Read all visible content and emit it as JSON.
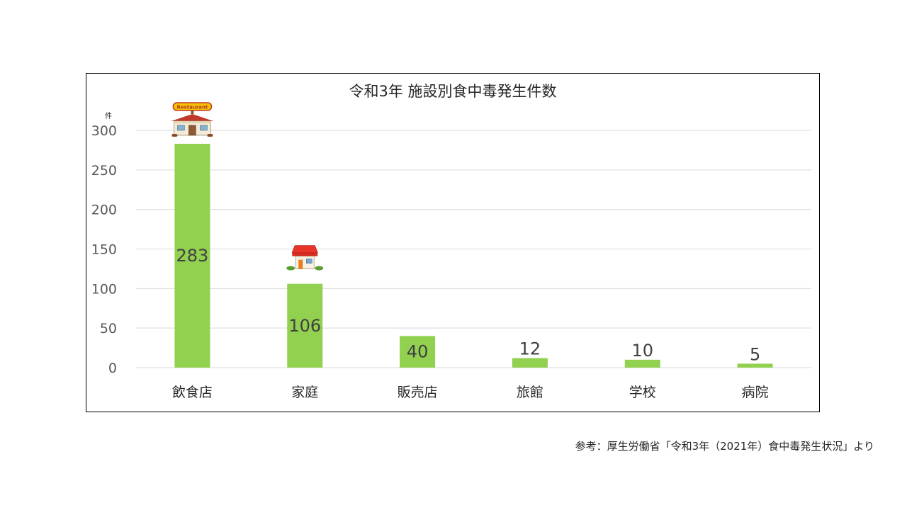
{
  "colors": {
    "bar": "#92d050",
    "grid": "#d9d9d9",
    "frame": "#000000"
  },
  "source_note": "参考：厚生労働省「令和3年（2021年）食中毒発生状況」より",
  "chart_data": {
    "type": "bar",
    "title": "令和3年 施設別食中毒発生件数",
    "unit_label": "件",
    "categories": [
      "飲食店",
      "家庭",
      "販売店",
      "旅館",
      "学校",
      "病院"
    ],
    "values": [
      283,
      106,
      40,
      12,
      10,
      5
    ],
    "data_labels": [
      "283",
      "106",
      "40",
      "12",
      "10",
      "5"
    ],
    "yticks": [
      "0",
      "50",
      "100",
      "150",
      "200",
      "250",
      "300"
    ],
    "ylim": [
      0,
      300
    ],
    "grid": true,
    "legend": "none",
    "icons": [
      {
        "category": "飲食店",
        "name": "restaurant-icon",
        "sign_text": "Restaurant"
      },
      {
        "category": "家庭",
        "name": "house-icon"
      }
    ]
  }
}
